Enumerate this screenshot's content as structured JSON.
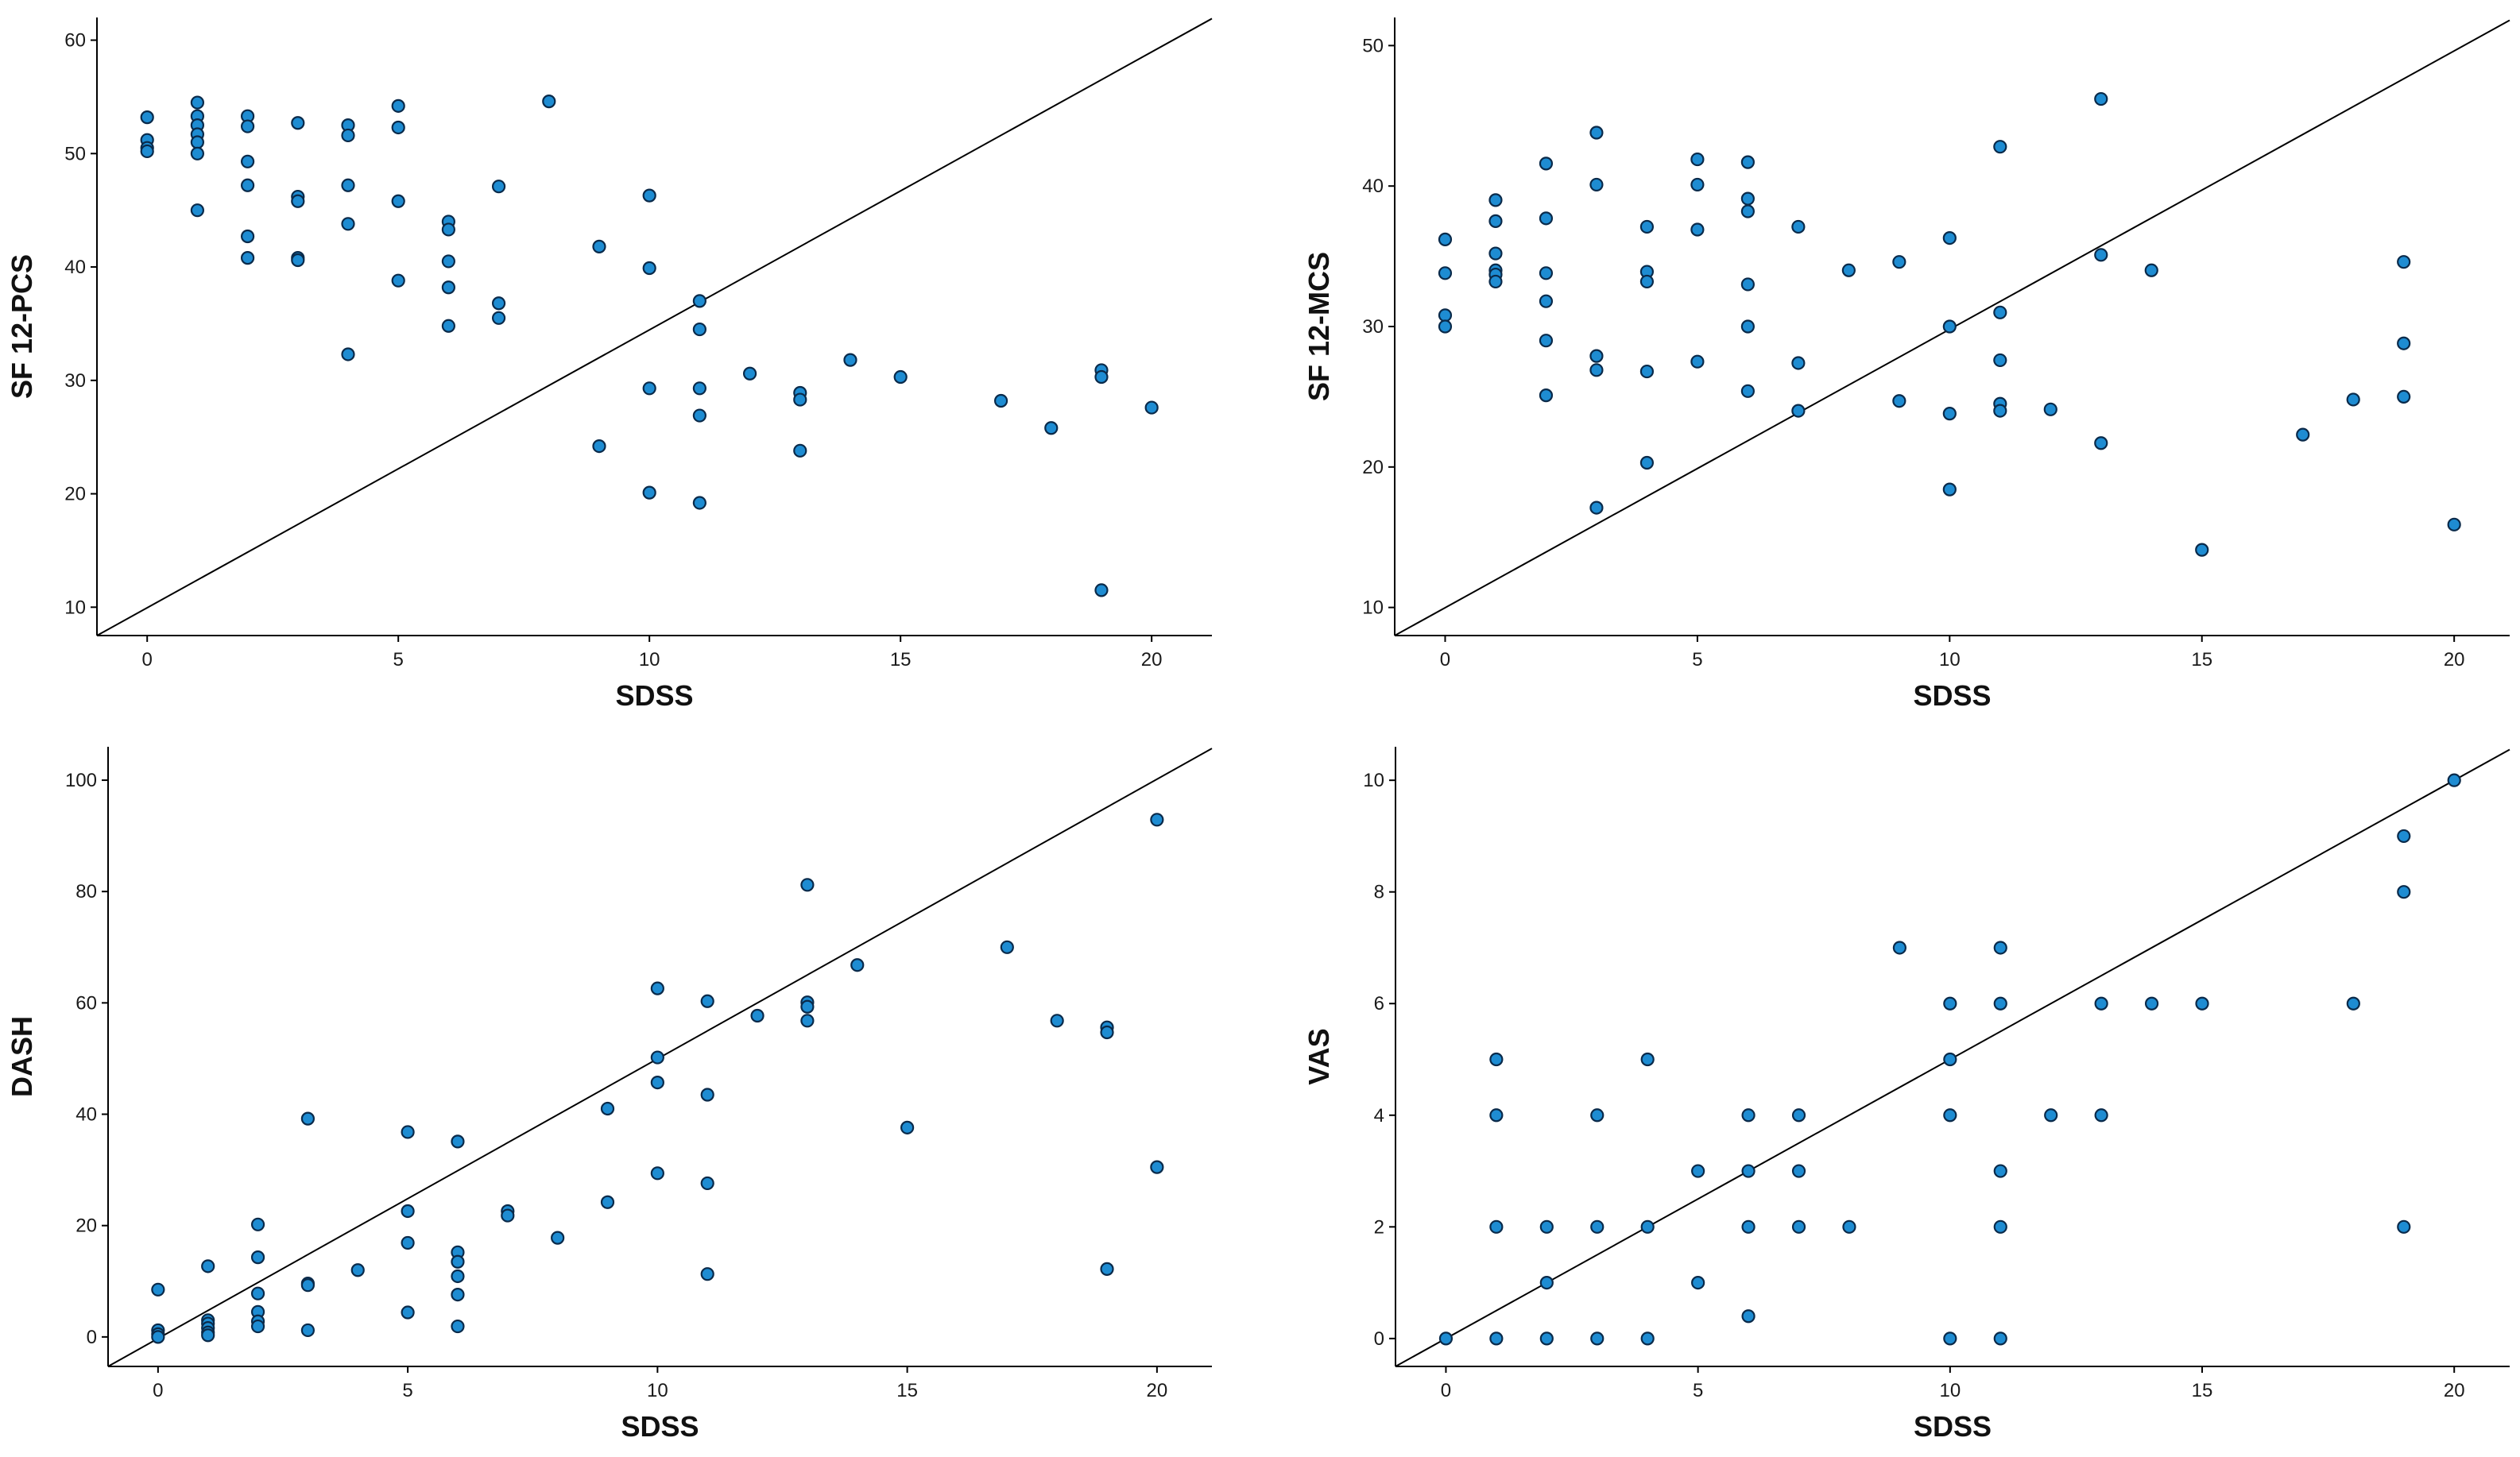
{
  "figure": {
    "colors": {
      "point_fill": "#1E8CD2",
      "point_stroke": "#0A2A4A",
      "axis": "#000000",
      "line": "#000000"
    }
  },
  "chart_data": [
    {
      "type": "scatter",
      "title": "",
      "xlabel": "SDSS",
      "ylabel": "SF 12-PCS",
      "xlim": [
        -1,
        21.2
      ],
      "ylim": [
        7.5,
        62
      ],
      "xticks": [
        0,
        5,
        10,
        15,
        20
      ],
      "yticks": [
        10,
        20,
        30,
        40,
        50,
        60
      ],
      "grid": false,
      "fit_line": {
        "x": [
          -1,
          21.2
        ],
        "y": [
          7.5,
          61.9
        ]
      },
      "points": [
        [
          0,
          53.2
        ],
        [
          0,
          51.2
        ],
        [
          0,
          50.5
        ],
        [
          0,
          50.2
        ],
        [
          1,
          54.5
        ],
        [
          1,
          53.3
        ],
        [
          1,
          52.5
        ],
        [
          1,
          51.7
        ],
        [
          1,
          51
        ],
        [
          1,
          50
        ],
        [
          1,
          45
        ],
        [
          2,
          53.3
        ],
        [
          2,
          52.4
        ],
        [
          2,
          49.3
        ],
        [
          2,
          47.2
        ],
        [
          2,
          42.7
        ],
        [
          2,
          40.8
        ],
        [
          3,
          52.7
        ],
        [
          3,
          46.2
        ],
        [
          3,
          45.8
        ],
        [
          3,
          40.8
        ],
        [
          3,
          40.6
        ],
        [
          4,
          52.5
        ],
        [
          4,
          51.6
        ],
        [
          4,
          47.2
        ],
        [
          4,
          43.8
        ],
        [
          4,
          32.3
        ],
        [
          5,
          54.2
        ],
        [
          5,
          52.3
        ],
        [
          5,
          45.8
        ],
        [
          5,
          38.8
        ],
        [
          6,
          44
        ],
        [
          6,
          43.3
        ],
        [
          6,
          40.5
        ],
        [
          6,
          38.2
        ],
        [
          6,
          34.8
        ],
        [
          7,
          47.1
        ],
        [
          7,
          36.8
        ],
        [
          7,
          35.5
        ],
        [
          8,
          54.6
        ],
        [
          9,
          41.8
        ],
        [
          9,
          24.2
        ],
        [
          10,
          46.3
        ],
        [
          10,
          39.9
        ],
        [
          10,
          29.3
        ],
        [
          10,
          20.1
        ],
        [
          11,
          37
        ],
        [
          11,
          34.5
        ],
        [
          11,
          29.3
        ],
        [
          11,
          26.9
        ],
        [
          11,
          19.2
        ],
        [
          12,
          30.6
        ],
        [
          13,
          28.9
        ],
        [
          13,
          28.3
        ],
        [
          13,
          23.8
        ],
        [
          14,
          31.8
        ],
        [
          15,
          30.3
        ],
        [
          17,
          28.2
        ],
        [
          18,
          25.8
        ],
        [
          19,
          30.9
        ],
        [
          19,
          30.3
        ],
        [
          19,
          11.5
        ],
        [
          20,
          27.6
        ]
      ]
    },
    {
      "type": "scatter",
      "title": "",
      "xlabel": "SDSS",
      "ylabel": "SF 12-MCS",
      "xlim": [
        -1,
        21.1
      ],
      "ylim": [
        8,
        52
      ],
      "xticks": [
        0,
        5,
        10,
        15,
        20
      ],
      "yticks": [
        10,
        20,
        30,
        40,
        50
      ],
      "grid": false,
      "fit_line": {
        "x": [
          -1,
          21.1
        ],
        "y": [
          8,
          51.8
        ]
      },
      "points": [
        [
          0,
          36.2
        ],
        [
          0,
          33.8
        ],
        [
          0,
          30.8
        ],
        [
          0,
          30
        ],
        [
          1,
          39
        ],
        [
          1,
          37.5
        ],
        [
          1,
          35.2
        ],
        [
          1,
          34
        ],
        [
          1,
          33.7
        ],
        [
          1,
          33.2
        ],
        [
          2,
          41.6
        ],
        [
          2,
          37.7
        ],
        [
          2,
          33.8
        ],
        [
          2,
          31.8
        ],
        [
          2,
          29
        ],
        [
          2,
          25.1
        ],
        [
          3,
          43.8
        ],
        [
          3,
          40.1
        ],
        [
          3,
          27.9
        ],
        [
          3,
          26.9
        ],
        [
          3,
          17.1
        ],
        [
          4,
          37.1
        ],
        [
          4,
          33.9
        ],
        [
          4,
          33.2
        ],
        [
          4,
          26.8
        ],
        [
          4,
          20.3
        ],
        [
          5,
          41.9
        ],
        [
          5,
          40.1
        ],
        [
          5,
          36.9
        ],
        [
          5,
          27.5
        ],
        [
          6,
          41.7
        ],
        [
          6,
          39.1
        ],
        [
          6,
          38.2
        ],
        [
          6,
          33
        ],
        [
          6,
          30
        ],
        [
          6,
          25.4
        ],
        [
          7,
          37.1
        ],
        [
          7,
          27.4
        ],
        [
          7,
          24
        ],
        [
          8,
          34
        ],
        [
          9,
          34.6
        ],
        [
          9,
          24.7
        ],
        [
          10,
          36.3
        ],
        [
          10,
          30
        ],
        [
          10,
          23.8
        ],
        [
          10,
          18.4
        ],
        [
          11,
          42.8
        ],
        [
          11,
          31
        ],
        [
          11,
          27.6
        ],
        [
          11,
          24.5
        ],
        [
          11,
          24
        ],
        [
          12,
          24.1
        ],
        [
          13,
          46.2
        ],
        [
          13,
          35.1
        ],
        [
          13,
          21.7
        ],
        [
          14,
          34
        ],
        [
          15,
          14.1
        ],
        [
          17,
          22.3
        ],
        [
          18,
          24.8
        ],
        [
          19,
          34.6
        ],
        [
          19,
          28.8
        ],
        [
          19,
          25
        ],
        [
          20,
          15.9
        ]
      ]
    },
    {
      "type": "scatter",
      "title": "",
      "xlabel": "SDSS",
      "ylabel": "DASH",
      "xlim": [
        -1,
        21.1
      ],
      "ylim": [
        -5.3,
        106
      ],
      "xticks": [
        0,
        5,
        10,
        15,
        20
      ],
      "yticks": [
        0,
        20,
        40,
        60,
        80,
        100
      ],
      "grid": false,
      "fit_line": {
        "x": [
          -1,
          21.1
        ],
        "y": [
          -5.3,
          105.7
        ]
      },
      "points": [
        [
          0,
          8.5
        ],
        [
          0,
          1.2
        ],
        [
          0,
          0.5
        ],
        [
          0,
          0
        ],
        [
          1,
          12.7
        ],
        [
          1,
          3
        ],
        [
          1,
          2.4
        ],
        [
          1,
          1.6
        ],
        [
          1,
          0.8
        ],
        [
          1,
          0.3
        ],
        [
          2,
          20.2
        ],
        [
          2,
          14.3
        ],
        [
          2,
          7.8
        ],
        [
          2,
          4.5
        ],
        [
          2,
          2.8
        ],
        [
          2,
          1.9
        ],
        [
          3,
          39.2
        ],
        [
          3,
          9.6
        ],
        [
          3,
          9.3
        ],
        [
          3,
          1.2
        ],
        [
          4,
          12
        ],
        [
          5,
          36.8
        ],
        [
          5,
          22.6
        ],
        [
          5,
          16.9
        ],
        [
          5,
          4.4
        ],
        [
          6,
          35.1
        ],
        [
          6,
          15.2
        ],
        [
          6,
          13.5
        ],
        [
          6,
          10.9
        ],
        [
          6,
          7.6
        ],
        [
          6,
          1.9
        ],
        [
          7,
          22.6
        ],
        [
          7,
          21.8
        ],
        [
          8,
          17.8
        ],
        [
          9,
          41
        ],
        [
          9,
          24.2
        ],
        [
          10,
          62.6
        ],
        [
          10,
          50.2
        ],
        [
          10,
          45.7
        ],
        [
          10,
          29.4
        ],
        [
          11,
          60.3
        ],
        [
          11,
          43.5
        ],
        [
          11,
          27.6
        ],
        [
          11,
          11.3
        ],
        [
          12,
          57.7
        ],
        [
          13,
          81.2
        ],
        [
          13,
          60.1
        ],
        [
          13,
          59.3
        ],
        [
          13,
          56.8
        ],
        [
          14,
          66.8
        ],
        [
          15,
          37.6
        ],
        [
          17,
          70
        ],
        [
          18,
          56.8
        ],
        [
          19,
          55.6
        ],
        [
          19,
          54.7
        ],
        [
          19,
          12.2
        ],
        [
          20,
          92.9
        ],
        [
          20,
          30.5
        ]
      ]
    },
    {
      "type": "scatter",
      "title": "",
      "xlabel": "SDSS",
      "ylabel": "VAS",
      "xlim": [
        -1,
        21.1
      ],
      "ylim": [
        -0.5,
        10.6
      ],
      "xticks": [
        0,
        5,
        10,
        15,
        20
      ],
      "yticks": [
        0,
        2,
        4,
        6,
        8,
        10
      ],
      "grid": false,
      "fit_line": {
        "x": [
          -1,
          21.1
        ],
        "y": [
          -0.5,
          10.55
        ]
      },
      "points": [
        [
          0,
          0
        ],
        [
          1,
          5
        ],
        [
          1,
          4
        ],
        [
          1,
          2
        ],
        [
          1,
          0
        ],
        [
          2,
          2
        ],
        [
          2,
          1
        ],
        [
          2,
          0
        ],
        [
          3,
          4
        ],
        [
          3,
          2
        ],
        [
          3,
          0
        ],
        [
          4,
          5
        ],
        [
          4,
          2
        ],
        [
          4,
          0
        ],
        [
          5,
          3
        ],
        [
          5,
          1
        ],
        [
          6,
          4
        ],
        [
          6,
          3
        ],
        [
          6,
          2
        ],
        [
          6,
          0.4
        ],
        [
          7,
          4
        ],
        [
          7,
          3
        ],
        [
          7,
          2
        ],
        [
          8,
          2
        ],
        [
          9,
          7
        ],
        [
          10,
          6
        ],
        [
          10,
          5
        ],
        [
          10,
          4
        ],
        [
          10,
          0
        ],
        [
          11,
          7
        ],
        [
          11,
          6
        ],
        [
          11,
          3
        ],
        [
          11,
          2
        ],
        [
          11,
          0
        ],
        [
          12,
          4
        ],
        [
          13,
          6
        ],
        [
          13,
          4
        ],
        [
          14,
          6
        ],
        [
          15,
          6
        ],
        [
          18,
          6
        ],
        [
          19,
          9
        ],
        [
          19,
          8
        ],
        [
          19,
          2
        ],
        [
          20,
          10
        ]
      ]
    }
  ]
}
